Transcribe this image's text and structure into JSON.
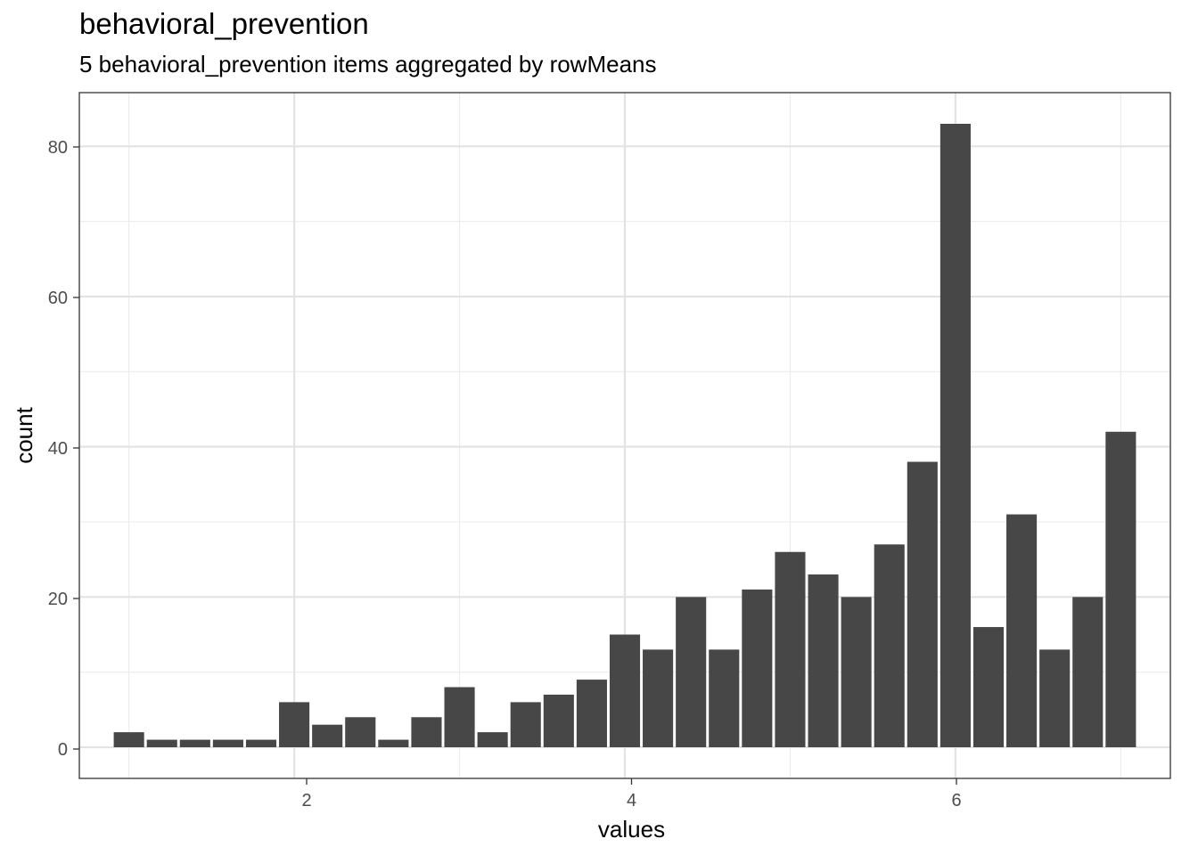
{
  "chart_data": {
    "type": "bar",
    "title": "behavioral_prevention",
    "subtitle": "5 behavioral_prevention items aggregated by rowMeans",
    "xlabel": "values",
    "ylabel": "count",
    "x": [
      1.0,
      1.2,
      1.4,
      1.6,
      1.8,
      2.0,
      2.2,
      2.4,
      2.6,
      2.8,
      3.0,
      3.2,
      3.4,
      3.6,
      3.8,
      4.0,
      4.2,
      4.4,
      4.6,
      4.8,
      5.0,
      5.2,
      5.4,
      5.6,
      5.8,
      6.0,
      6.2,
      6.4,
      6.6,
      6.8,
      7.0
    ],
    "values": [
      2,
      1,
      1,
      1,
      1,
      6,
      3,
      4,
      1,
      4,
      8,
      2,
      6,
      7,
      9,
      15,
      13,
      20,
      13,
      21,
      26,
      23,
      20,
      27,
      38,
      83,
      16,
      31,
      13,
      20,
      42
    ],
    "xlim": [
      0.7,
      7.3
    ],
    "ylim": [
      -4.15,
      87.15
    ],
    "x_ticks": [
      "2",
      "4",
      "6"
    ],
    "y_ticks": [
      "0",
      "20",
      "40",
      "60",
      "80"
    ],
    "grid": true,
    "bar_color": "#474747"
  }
}
